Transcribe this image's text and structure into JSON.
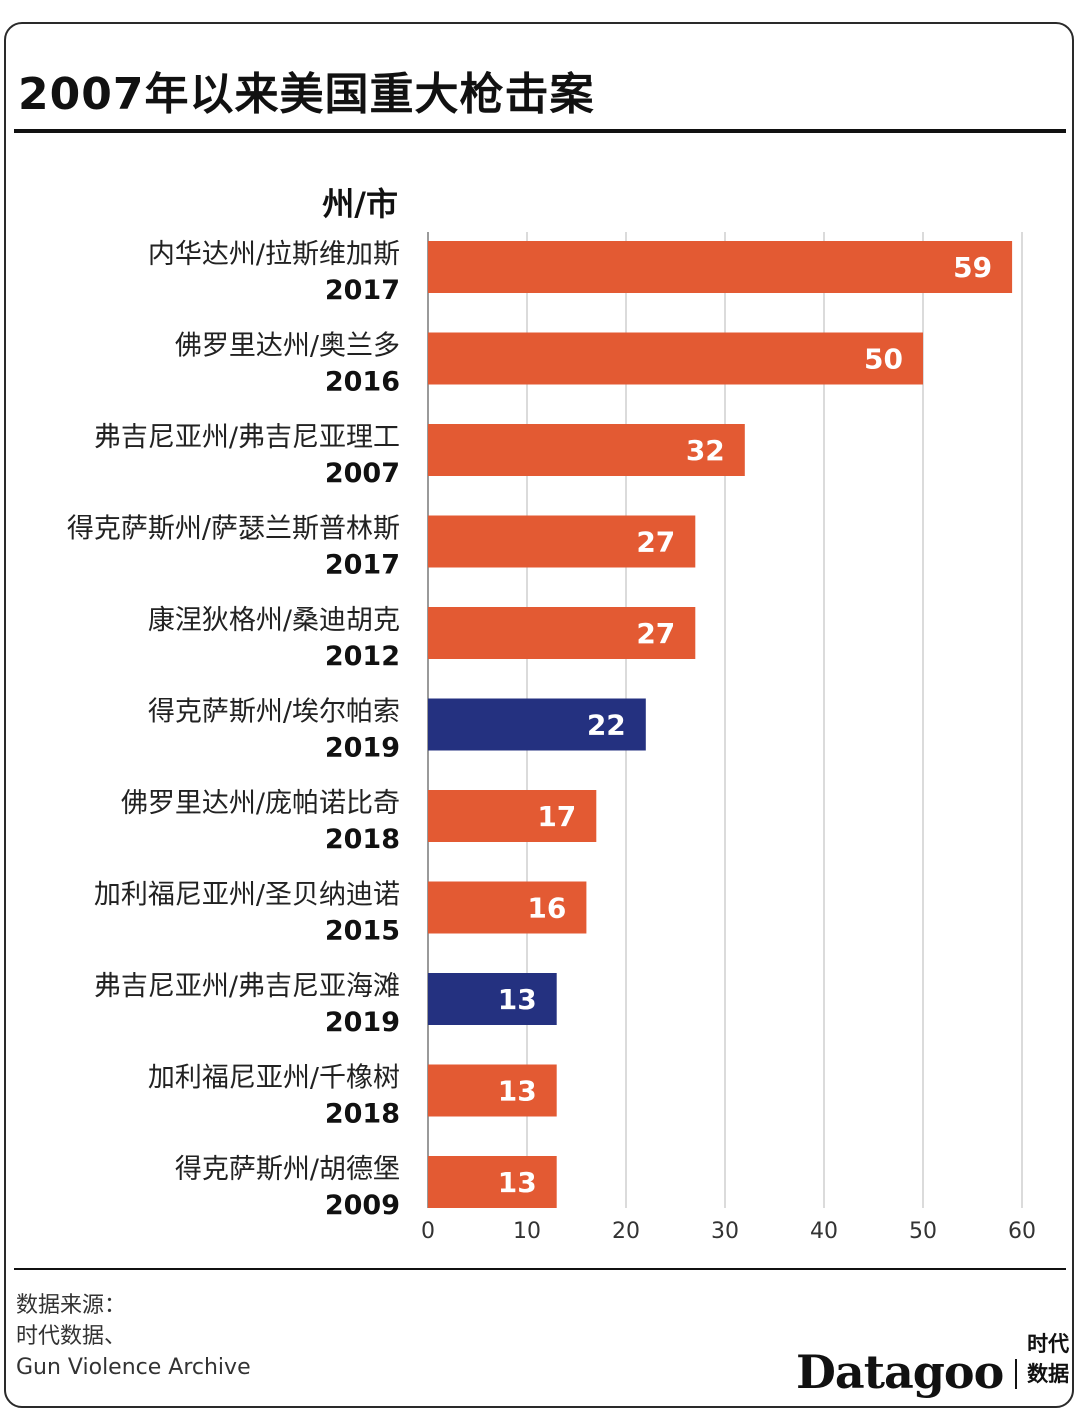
{
  "title": "2007年以来美国重大枪击案",
  "colors": {
    "default": "#E35A33",
    "highlight": "#243180",
    "grid": "#cfcfcf"
  },
  "chart_data": {
    "type": "bar",
    "orientation": "horizontal",
    "category_header": "州/市",
    "categories": [
      {
        "label": "内华达州/拉斯维加斯",
        "year": "2017",
        "value": 59,
        "highlight": false
      },
      {
        "label": "佛罗里达州/奥兰多",
        "year": "2016",
        "value": 50,
        "highlight": false
      },
      {
        "label": "弗吉尼亚州/弗吉尼亚理工",
        "year": "2007",
        "value": 32,
        "highlight": false
      },
      {
        "label": "得克萨斯州/萨瑟兰斯普林斯",
        "year": "2017",
        "value": 27,
        "highlight": false
      },
      {
        "label": "康涅狄格州/桑迪胡克",
        "year": "2012",
        "value": 27,
        "highlight": false
      },
      {
        "label": "得克萨斯州/埃尔帕索",
        "year": "2019",
        "value": 22,
        "highlight": true
      },
      {
        "label": "佛罗里达州/庞帕诺比奇",
        "year": "2018",
        "value": 17,
        "highlight": false
      },
      {
        "label": "加利福尼亚州/圣贝纳迪诺",
        "year": "2015",
        "value": 16,
        "highlight": false
      },
      {
        "label": "弗吉尼亚州/弗吉尼亚海滩",
        "year": "2019",
        "value": 13,
        "highlight": true
      },
      {
        "label": "加利福尼亚州/千橡树",
        "year": "2018",
        "value": 13,
        "highlight": false
      },
      {
        "label": "得克萨斯州/胡德堡",
        "year": "2009",
        "value": 13,
        "highlight": false
      }
    ],
    "xlim": [
      0,
      60
    ],
    "xticks": [
      0,
      10,
      20,
      30,
      40,
      50,
      60
    ],
    "grid": true
  },
  "source": {
    "line1": "数据来源：",
    "line2": "时代数据、",
    "line3": "Gun Violence Archive"
  },
  "brand": {
    "name": "Datagoo",
    "sub": "时代数据"
  }
}
